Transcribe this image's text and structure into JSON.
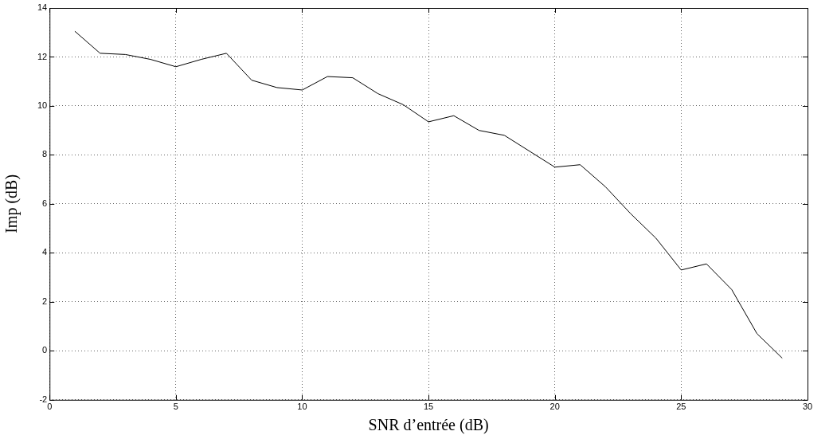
{
  "chart_data": {
    "type": "line",
    "xlabel": "SNR d’entrée (dB)",
    "ylabel": "Imp (dB)",
    "x": [
      1,
      2,
      3,
      4,
      5,
      6,
      7,
      8,
      9,
      10,
      11,
      12,
      13,
      14,
      15,
      16,
      17,
      18,
      19,
      20,
      21,
      22,
      23,
      24,
      25,
      26,
      27,
      28,
      29
    ],
    "series": [
      {
        "color": "#000000",
        "values": [
          13.05,
          12.15,
          12.1,
          11.9,
          11.6,
          11.9,
          12.15,
          11.05,
          10.75,
          10.65,
          11.2,
          11.15,
          10.5,
          10.05,
          9.35,
          9.6,
          9.0,
          8.8,
          8.15,
          7.5,
          7.6,
          6.7,
          5.6,
          4.6,
          3.3,
          3.55,
          2.5,
          0.7,
          -0.3
        ]
      }
    ],
    "xlim": [
      0,
      30
    ],
    "xticks": [
      0,
      5,
      10,
      15,
      20,
      25,
      30
    ],
    "ylim": [
      -2,
      14
    ],
    "yticks": [
      -2,
      0,
      2,
      4,
      6,
      8,
      10,
      12,
      14
    ],
    "grid": true,
    "marker": "none",
    "line_style": "solid",
    "legend": false
  }
}
